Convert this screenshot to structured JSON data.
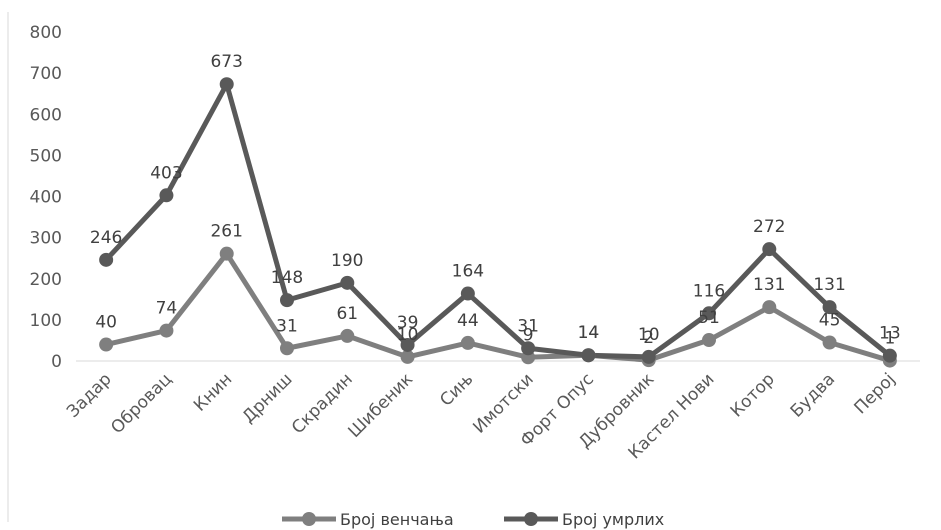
{
  "chart_data": {
    "type": "line",
    "categories": [
      "Задар",
      "Обровац",
      "Книн",
      "Дрниш",
      "Скрадин",
      "Шибеник",
      "Сињ",
      "Имотски",
      "Форт Опус",
      "Дубровник",
      "Кастел Нови",
      "Котор",
      "Будва",
      "Перој"
    ],
    "series": [
      {
        "name": "Број венчања",
        "values": [
          40,
          74,
          261,
          31,
          61,
          10,
          44,
          9,
          14,
          2,
          51,
          131,
          45,
          1
        ],
        "color": "#7f7f7f"
      },
      {
        "name": "Број умрлих",
        "values": [
          246,
          403,
          673,
          148,
          190,
          39,
          164,
          31,
          14,
          10,
          116,
          272,
          131,
          13
        ],
        "color": "#595959"
      }
    ],
    "yticks": [
      "0",
      "100",
      "200",
      "300",
      "400",
      "500",
      "600",
      "700",
      "800"
    ],
    "ylim": [
      0,
      800
    ],
    "grid": false,
    "legend_position": "bottom",
    "data_labels": true
  }
}
